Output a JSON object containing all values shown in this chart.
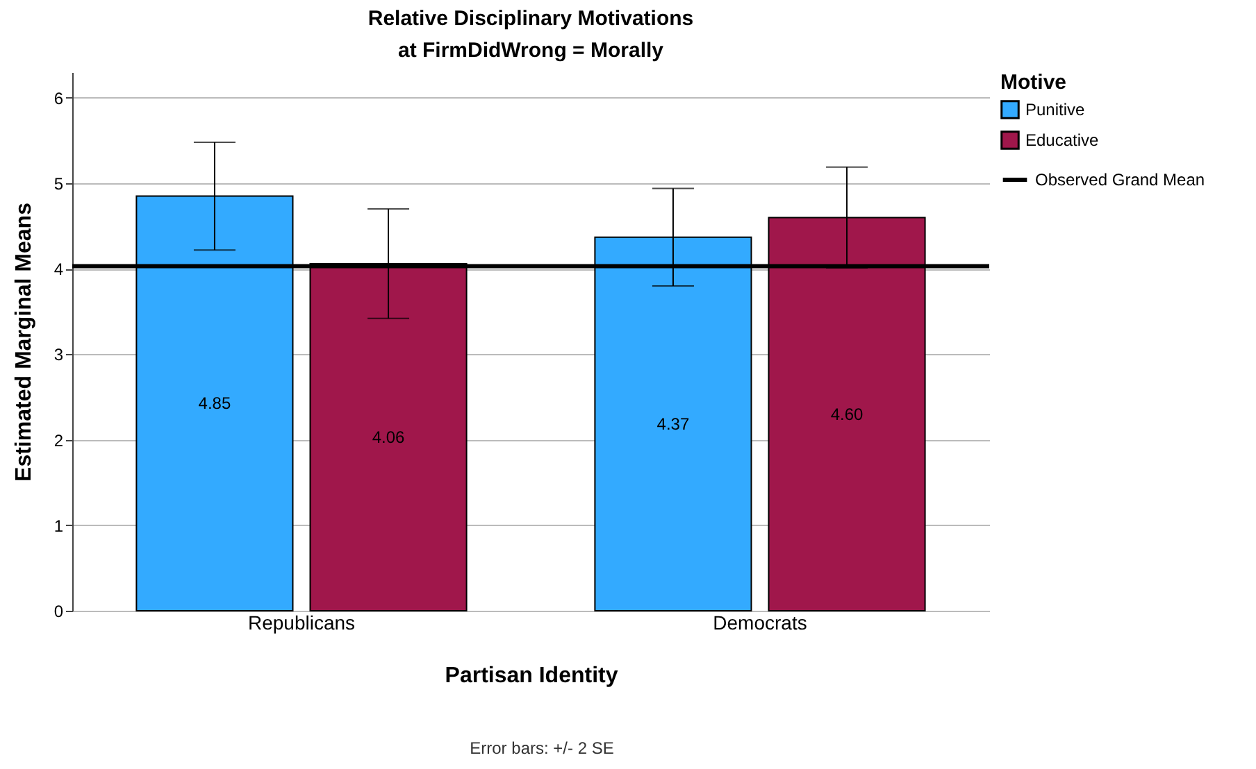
{
  "chart_data": {
    "type": "bar",
    "title": "Relative Disciplinary Motivations",
    "subtitle": "at FirmDidWrong = Morally",
    "xlabel": "Partisan Identity",
    "ylabel": "Estimated Marginal Means",
    "legend_title": "Motive",
    "categories": [
      "Republicans",
      "Democrats"
    ],
    "series": [
      {
        "name": "Punitive",
        "color": "#33aaff",
        "values": [
          4.85,
          4.37
        ],
        "value_labels": [
          "4.85",
          "4.37"
        ],
        "errors": [
          0.63,
          0.57
        ]
      },
      {
        "name": "Educative",
        "color": "#a0174b",
        "values": [
          4.06,
          4.6
        ],
        "value_labels": [
          "4.06",
          "4.60"
        ],
        "errors": [
          0.64,
          0.59
        ]
      }
    ],
    "ylim": [
      0,
      6.3
    ],
    "yticks": [
      0,
      1,
      2,
      3,
      4,
      5,
      6
    ],
    "grid": "y",
    "legend": "top right",
    "ref_lines": [
      {
        "axis": "y",
        "value": 4.03,
        "label": "Observed Grand Mean",
        "color": "#000000"
      }
    ],
    "annotations": [
      "Error bars: +/- 2 SE"
    ]
  }
}
